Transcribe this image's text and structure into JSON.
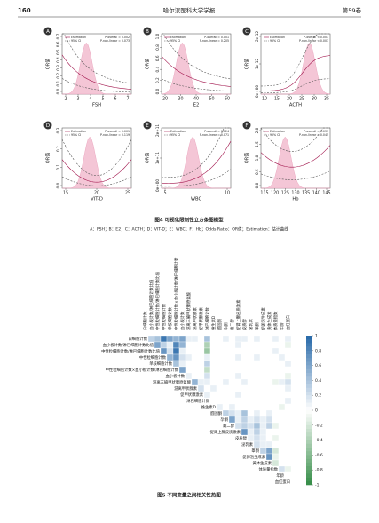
{
  "header": {
    "page": "160",
    "journal": "哈尔滨医科大学学报",
    "volume": "第59卷"
  },
  "figure4": {
    "caption": "图4  可视化限制性立方条图模型",
    "note": "A：FSH；B：E2；C：ACTH；D：VIT-D；E：WBC；F：Hb；Odds Ratio：OR值；Estimation：估计曲线",
    "legend_estimation": "Estimation",
    "legend_ci": "95% CI",
    "panels": [
      {
        "letter": "A",
        "xlabel": "FSH",
        "ylabel": "OR值",
        "xticks": [
          "2",
          "3",
          "4",
          "5",
          "6",
          "7"
        ],
        "yticks": [
          "0.0",
          "0.1",
          "0.2",
          "0.3",
          "0.4",
          "0.5",
          "0.6",
          "0.7"
        ],
        "p_overall": "P-overall = 0.002",
        "p_nonlinear": "P-non-linear = 0.073"
      },
      {
        "letter": "B",
        "xlabel": "E2",
        "ylabel": "OR值",
        "xticks": [
          "20",
          "30",
          "40",
          "50",
          "60"
        ],
        "yticks": [
          "0.0",
          "0.2",
          "0.4",
          "0.6",
          "0.8",
          "1.0"
        ],
        "p_overall": "P-overall = 0.001",
        "p_nonlinear": "P-non-linear = 0.205"
      },
      {
        "letter": "C",
        "xlabel": "ACTH",
        "ylabel": "OR值",
        "xticks": [
          "10",
          "15",
          "20",
          "25",
          "30",
          "35"
        ],
        "yticks": [
          "0e+00",
          "1e-12",
          "2e-12"
        ],
        "p_overall": "P-overall < 0.001",
        "p_nonlinear": "P-non-linear < 0.001"
      },
      {
        "letter": "D",
        "xlabel": "VIT-D",
        "ylabel": "OR值",
        "xticks": [
          "15",
          "20",
          "25"
        ],
        "yticks": [
          "0.0",
          "0.1",
          "0.2",
          "0.3"
        ],
        "p_overall": "P-overall = 0.001",
        "p_nonlinear": "P-non-linear = 0.119"
      },
      {
        "letter": "E",
        "xlabel": "WBC",
        "ylabel": "OR值",
        "xticks": [
          "5",
          "10"
        ],
        "yticks": [
          "0e+00",
          "1e+11",
          "2e+11"
        ],
        "p_overall": "P-overall = 0.024",
        "p_nonlinear": "P-non-linear = 0.071"
      },
      {
        "letter": "F",
        "xlabel": "Hb",
        "ylabel": "OR值",
        "xticks": [
          "115",
          "120",
          "125",
          "130",
          "135",
          "140",
          "145"
        ],
        "yticks": [
          "0.0",
          "0.5",
          "1.0",
          "1.5",
          "2.0"
        ],
        "p_overall": "P-overall = 0.031",
        "p_nonlinear": "P-non-linear = 0.045"
      }
    ]
  },
  "figure5": {
    "caption": "图5  不同变量之间相关性热图",
    "variables": [
      "白细胞计数",
      "血小板计数/淋巴细胞计数比值",
      "中性粒细胞计数/淋巴细胞计数比值",
      "中性粒细胞计数",
      "单核细胞计数",
      "中性粒细胞计数×血小板计数/淋巴细胞计数",
      "血小板计数",
      "游离三碘甲状腺原氨酸",
      "游离甲状腺素",
      "促甲状腺激素",
      "淋巴细胞计数",
      "维生素D",
      "醛固酮",
      "孕酮",
      "雌二醇",
      "促肾上腺皮质激素",
      "皮质醇",
      "泌乳素",
      "睾酮",
      "促卵泡生成素",
      "黄体生成素",
      "体质量指数",
      "年龄",
      "血红蛋白"
    ],
    "matrix": [
      [
        0.3,
        0.4,
        0.9,
        0.6,
        0.5,
        0.6,
        0.1,
        0.1,
        0.0,
        0.4,
        0.0,
        0.0,
        0.1,
        0.0,
        0.1,
        0.1,
        0.0,
        0.1,
        0.0,
        0.0,
        0.1,
        0.0,
        0.1
      ],
      [
        0.6,
        0.3,
        0.1,
        0.8,
        0.5,
        0.0,
        0.0,
        0.0,
        -0.4,
        0.0,
        0.0,
        0.0,
        0.0,
        0.1,
        0.0,
        0.0,
        0.0,
        0.0,
        0.0,
        0.0,
        0.0,
        -0.1
      ],
      [
        0.7,
        0.2,
        0.9,
        0.1,
        0.0,
        0.0,
        0.0,
        -0.5,
        0.0,
        0.0,
        0.0,
        0.0,
        0.0,
        0.0,
        0.0,
        0.0,
        0.0,
        0.0,
        0.1,
        0.0,
        0.0
      ],
      [
        0.5,
        0.7,
        0.2,
        0.1,
        0.0,
        0.0,
        0.1,
        0.0,
        0.0,
        0.0,
        0.0,
        0.1,
        0.0,
        0.0,
        0.1,
        0.0,
        0.0,
        0.0,
        0.1,
        0.0
      ],
      [
        0.4,
        0.1,
        0.0,
        0.0,
        0.0,
        0.3,
        0.0,
        0.0,
        0.0,
        0.0,
        0.0,
        0.0,
        0.0,
        0.0,
        0.0,
        0.0,
        0.0,
        0.0,
        0.1
      ],
      [
        0.6,
        0.0,
        0.0,
        0.0,
        -0.3,
        0.0,
        0.0,
        0.0,
        0.0,
        0.0,
        0.0,
        0.0,
        0.0,
        0.0,
        0.0,
        0.0,
        0.0,
        0.0
      ],
      [
        0.1,
        0.0,
        0.0,
        0.2,
        0.0,
        0.0,
        0.0,
        0.0,
        0.1,
        0.0,
        0.0,
        0.0,
        0.0,
        0.0,
        0.0,
        0.0,
        -0.1
      ],
      [
        0.5,
        0.1,
        0.1,
        0.0,
        0.0,
        0.1,
        0.0,
        0.0,
        0.1,
        0.0,
        0.0,
        0.0,
        0.0,
        -0.1,
        0.1,
        0.2
      ],
      [
        0.2,
        0.0,
        0.1,
        0.0,
        0.0,
        0.0,
        0.0,
        0.0,
        0.0,
        0.0,
        0.0,
        0.0,
        0.0,
        0.0,
        0.1
      ],
      [
        0.1,
        0.0,
        0.0,
        0.0,
        0.0,
        0.1,
        0.0,
        0.0,
        0.0,
        0.0,
        0.0,
        0.0,
        0.0,
        0.0
      ],
      [
        0.0,
        0.0,
        0.0,
        0.0,
        0.0,
        0.0,
        0.0,
        0.0,
        0.0,
        0.0,
        0.0,
        0.0,
        0.1
      ],
      [
        0.1,
        0.0,
        0.1,
        0.0,
        0.0,
        0.0,
        0.0,
        0.0,
        0.0,
        0.0,
        -0.1,
        0.0
      ],
      [
        0.3,
        0.2,
        0.1,
        0.4,
        0.0,
        0.1,
        0.0,
        0.1,
        0.0,
        0.0,
        0.0
      ],
      [
        0.6,
        0.1,
        0.3,
        0.1,
        0.2,
        0.1,
        0.2,
        0.0,
        0.0,
        0.0
      ],
      [
        0.2,
        0.3,
        0.2,
        0.4,
        0.1,
        0.3,
        -0.1,
        0.0,
        0.0
      ],
      [
        0.7,
        0.1,
        0.3,
        0.1,
        0.0,
        0.0,
        0.0,
        0.0
      ],
      [
        0.1,
        0.2,
        0.1,
        0.0,
        -0.1,
        0.0,
        0.0
      ],
      [
        0.2,
        0.1,
        0.1,
        0.0,
        0.0,
        0.0
      ],
      [
        0.3,
        0.6,
        -0.2,
        0.0,
        0.0
      ],
      [
        0.7,
        -0.1,
        0.0,
        0.0
      ],
      [
        -0.2,
        0.0,
        0.0
      ],
      [
        0.2,
        -0.1
      ],
      [
        0.0
      ]
    ],
    "legend_ticks": [
      1,
      0.8,
      0.6,
      0.4,
      0.2,
      0,
      -0.2,
      -0.4,
      -0.6,
      -0.8,
      -1
    ]
  }
}
